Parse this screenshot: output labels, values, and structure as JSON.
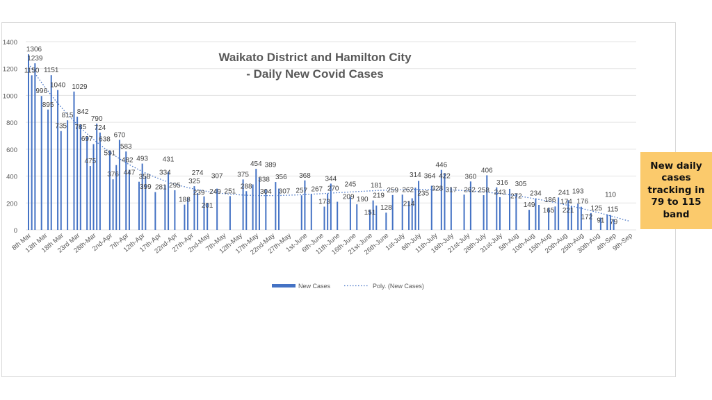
{
  "chart_data": {
    "type": "bar",
    "title_lines": [
      "Waikato District and Hamilton City",
      "- Daily New Covid Cases"
    ],
    "xlabel": "",
    "ylabel": "",
    "ylim": [
      0,
      1400
    ],
    "yticks": [
      0,
      200,
      400,
      600,
      800,
      1000,
      1200,
      1400
    ],
    "grid": true,
    "legend_position": "bottom",
    "x_range": [
      "Mar 8",
      "Sep 9"
    ],
    "xtick_labels": [
      "8th Mar",
      "13th Mar",
      "18th Mar",
      "23rd Mar",
      "28th-Mar",
      "2nd-Apr",
      "7th-Apr",
      "12th-Apr",
      "17th-Apr",
      "22nd-Apr",
      "27th-Apr",
      "2nd-May",
      "7th-May",
      "12th-May",
      "17th-May",
      "22nd-May",
      "27th-May",
      "1st-June",
      "6th-June",
      "11th-June",
      "16th-June",
      "21st-June",
      "26th-June",
      "1st-July",
      "6th-July",
      "11th-July",
      "16th-July",
      "21st-July",
      "26th-July",
      "31st-July",
      "5th-Aug",
      "10th-Aug",
      "15th-Aug",
      "20th-Aug",
      "25th-Aug",
      "30th-Aug",
      "4th-Sep",
      "9th-Sep"
    ],
    "series": [
      {
        "name": "New Cases",
        "color": "#4472c4",
        "points": [
          [
            "Mar 8",
            1306
          ],
          [
            "Mar 9",
            1150
          ],
          [
            "Mar 10",
            1239
          ],
          [
            "Mar 12",
            996
          ],
          [
            "Mar 14",
            895
          ],
          [
            "Mar 15",
            1151
          ],
          [
            "Mar 17",
            1040
          ],
          [
            "Mar 18",
            735
          ],
          [
            "Mar 20",
            815
          ],
          [
            "Mar 22",
            1029
          ],
          [
            "Mar 23",
            842
          ],
          [
            "Mar 24",
            785
          ],
          [
            "Mar 26",
            697
          ],
          [
            "Mar 27",
            475
          ],
          [
            "Mar 28",
            638
          ],
          [
            "Mar 29",
            790
          ],
          [
            "Mar 30",
            724
          ],
          [
            "Apr 2",
            591
          ],
          [
            "Apr 3",
            376
          ],
          [
            "Apr 4",
            482
          ],
          [
            "Apr 5",
            670
          ],
          [
            "Apr 7",
            583
          ],
          [
            "Apr 8",
            447
          ],
          [
            "Apr 11",
            358
          ],
          [
            "Apr 12",
            493
          ],
          [
            "Apr 13",
            399
          ],
          [
            "Apr 16",
            281
          ],
          [
            "Apr 19",
            334
          ],
          [
            "Apr 20",
            431
          ],
          [
            "Apr 22",
            295
          ],
          [
            "Apr 25",
            188
          ],
          [
            "Apr 26",
            239
          ],
          [
            "Apr 28",
            325
          ],
          [
            "Apr 29",
            274
          ],
          [
            "May 1",
            249
          ],
          [
            "May 2",
            201
          ],
          [
            "May 5",
            307
          ],
          [
            "May 9",
            251
          ],
          [
            "May 13",
            375
          ],
          [
            "May 14",
            288
          ],
          [
            "May 16",
            338
          ],
          [
            "May 17",
            454
          ],
          [
            "May 18",
            389
          ],
          [
            "May 20",
            304
          ],
          [
            "May 23",
            356
          ],
          [
            "May 24",
            307
          ],
          [
            "May 31",
            257
          ],
          [
            "Jun 1",
            368
          ],
          [
            "Jun 3",
            267
          ],
          [
            "Jun 7",
            173
          ],
          [
            "Jun 8",
            270
          ],
          [
            "Jun 9",
            344
          ],
          [
            "Jun 11",
            209
          ],
          [
            "Jun 15",
            245
          ],
          [
            "Jun 17",
            190
          ],
          [
            "Jun 21",
            151
          ],
          [
            "Jun 22",
            219
          ],
          [
            "Jun 23",
            181
          ],
          [
            "Jun 26",
            128
          ],
          [
            "Jun 28",
            259
          ],
          [
            "Jul 1",
            262
          ],
          [
            "Jul 3",
            214
          ],
          [
            "Jul 4",
            235
          ],
          [
            "Jul 5",
            314
          ],
          [
            "Jul 6",
            364
          ],
          [
            "Jul 10",
            328
          ],
          [
            "Jul 13",
            446
          ],
          [
            "Jul 14",
            422
          ],
          [
            "Jul 16",
            317
          ],
          [
            "Jul 20",
            262
          ],
          [
            "Jul 22",
            360
          ],
          [
            "Jul 26",
            258
          ],
          [
            "Jul 27",
            406
          ],
          [
            "Jul 30",
            316
          ],
          [
            "Jul 31",
            243
          ],
          [
            "Aug 3",
            305
          ],
          [
            "Aug 5",
            272
          ],
          [
            "Aug 9",
            149
          ],
          [
            "Aug 11",
            234
          ],
          [
            "Aug 12",
            186
          ],
          [
            "Aug 15",
            165
          ],
          [
            "Aug 17",
            174
          ],
          [
            "Aug 18",
            241
          ],
          [
            "Aug 21",
            221
          ],
          [
            "Aug 22",
            176
          ],
          [
            "Aug 24",
            193
          ],
          [
            "Aug 25",
            172
          ],
          [
            "Aug 28",
            125
          ],
          [
            "Aug 31",
            91
          ],
          [
            "Sep 2",
            115
          ],
          [
            "Sep 3",
            110
          ],
          [
            "Sep 4",
            79
          ]
        ]
      }
    ],
    "trendline": {
      "name": "Poly. (New Cases)",
      "type": "polynomial",
      "color": "#4472c4",
      "style": "dotted"
    },
    "legend": [
      "New Cases",
      "Poly. (New Cases)"
    ]
  },
  "callout": {
    "text": "New daily cases tracking in 79 to 115 band",
    "color": "#fbca6c"
  }
}
